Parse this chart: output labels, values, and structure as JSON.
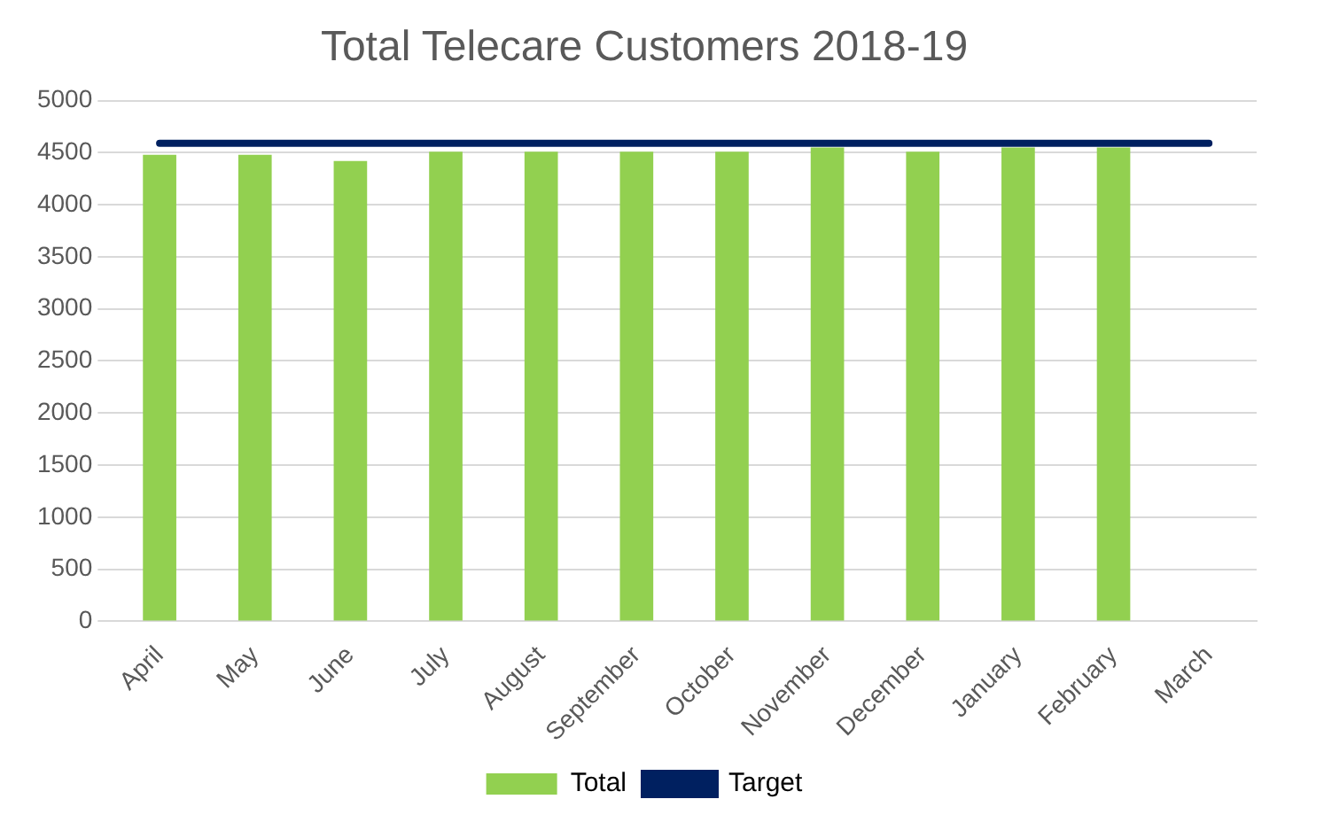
{
  "chart_data": {
    "type": "bar",
    "title": "Total Telecare Customers 2018-19",
    "categories": [
      "April",
      "May",
      "June",
      "July",
      "August",
      "September",
      "October",
      "November",
      "December",
      "January",
      "February",
      "March"
    ],
    "series": [
      {
        "name": "Total",
        "color": "#92d050",
        "values": [
          4480,
          4480,
          4420,
          4510,
          4510,
          4510,
          4510,
          4550,
          4510,
          4550,
          4550,
          null
        ]
      },
      {
        "name": "Target",
        "type": "line",
        "color": "#002060",
        "values": [
          4590,
          4590,
          4590,
          4590,
          4590,
          4590,
          4590,
          4590,
          4590,
          4590,
          4590,
          4590
        ]
      }
    ],
    "ylim": [
      0,
      5000
    ],
    "yticks": [
      0,
      500,
      1000,
      1500,
      2000,
      2500,
      3000,
      3500,
      4000,
      4500,
      5000
    ],
    "grid": "y",
    "legend": "bottom",
    "marker": "none"
  }
}
